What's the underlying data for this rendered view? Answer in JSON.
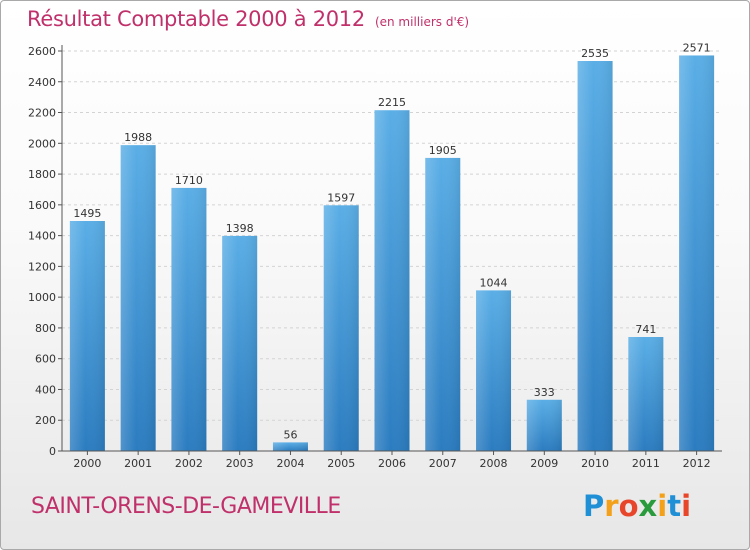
{
  "chart_data": {
    "type": "bar",
    "title": "Résultat Comptable 2000 à 2012",
    "subtitle": "(en milliers d'€)",
    "categories": [
      "2000",
      "2001",
      "2002",
      "2003",
      "2004",
      "2005",
      "2006",
      "2007",
      "2008",
      "2009",
      "2010",
      "2011",
      "2012"
    ],
    "values": [
      1495,
      1988,
      1710,
      1398,
      56,
      1597,
      2215,
      1905,
      1044,
      333,
      2535,
      741,
      2571
    ],
    "ylim": [
      0,
      2600
    ],
    "yticks": [
      0,
      200,
      400,
      600,
      800,
      1000,
      1200,
      1400,
      1600,
      1800,
      2000,
      2200,
      2400,
      2600
    ],
    "grid": true,
    "legend": "none",
    "bar_color_top": "#5aaee6",
    "bar_color_bottom": "#2b7cc0"
  },
  "location": "SAINT-ORENS-DE-GAMEVILLE",
  "logo": {
    "letters": [
      "P",
      "r",
      "o",
      "x",
      "i",
      "t",
      "i"
    ],
    "colors": [
      "#1f8fd6",
      "#f3a11b",
      "#e8462a",
      "#2a9b3c",
      "#f3a11b",
      "#1f8fd6",
      "#e8462a"
    ]
  }
}
